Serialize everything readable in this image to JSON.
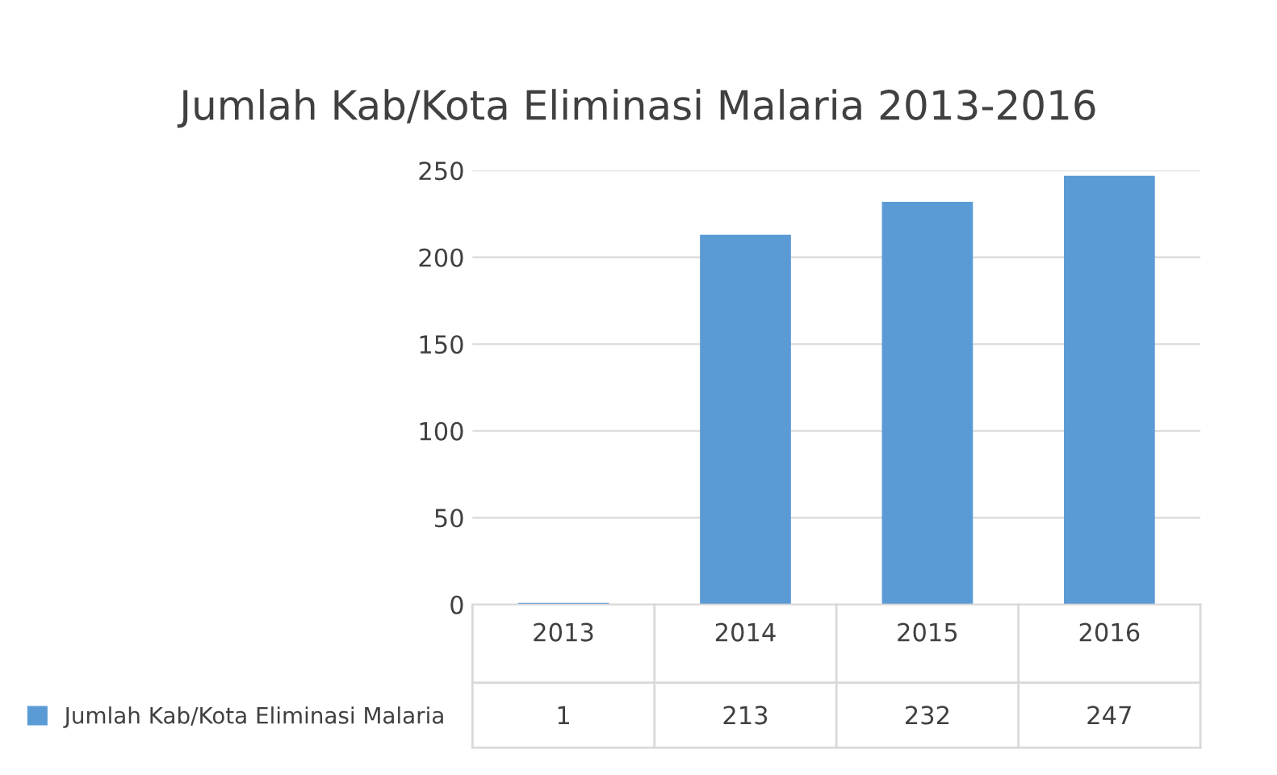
{
  "chart_data": {
    "type": "bar",
    "title": "Jumlah Kab/Kota Eliminasi Malaria 2013-2016",
    "categories": [
      "2013",
      "2014",
      "2015",
      "2016"
    ],
    "series": [
      {
        "name": "Jumlah Kab/Kota Eliminasi Malaria",
        "color": "#5b9bd5",
        "values": [
          1,
          213,
          232,
          247
        ]
      }
    ],
    "ylim": [
      0,
      250
    ],
    "yticks": [
      0,
      50,
      100,
      150,
      200,
      250
    ],
    "grid": "y",
    "legend": "bottom",
    "data_labels": true
  }
}
